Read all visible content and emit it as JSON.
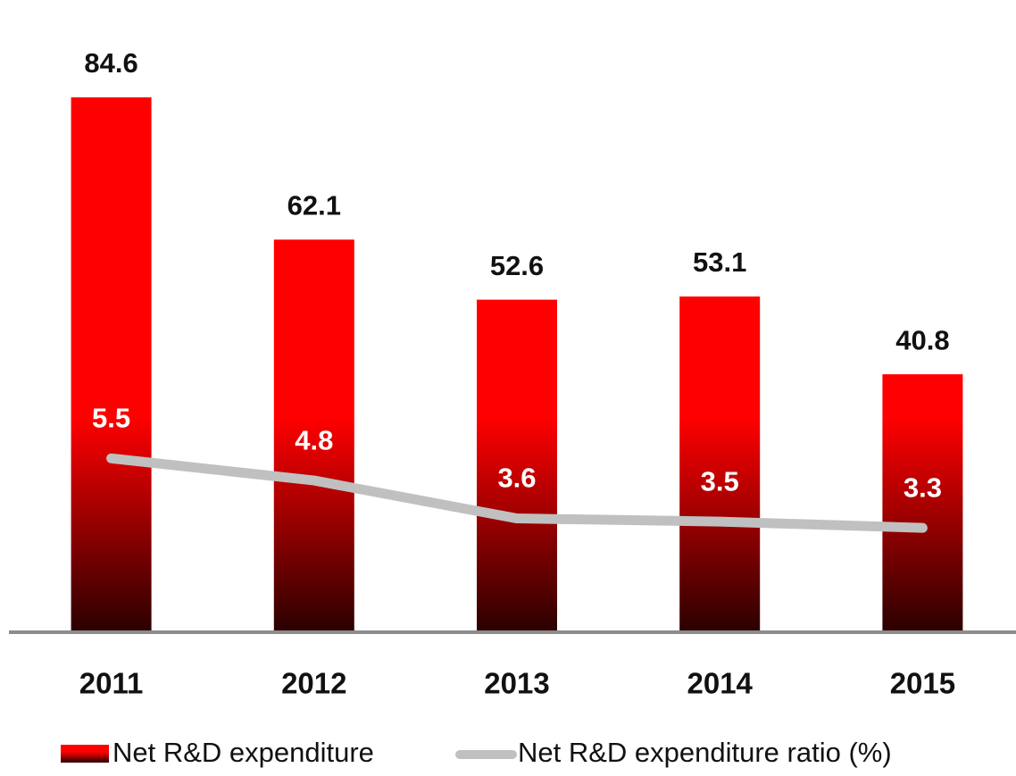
{
  "chart_data": {
    "type": "bar",
    "categories": [
      "2011",
      "2012",
      "2013",
      "2014",
      "2015"
    ],
    "series": [
      {
        "name": "Net R&D expenditure",
        "color": "#ff0000",
        "values": [
          84.6,
          62.1,
          52.6,
          53.1,
          40.8
        ]
      },
      {
        "name": "Net R&D expenditure ratio (%)",
        "color": "#c0c0c0",
        "axis": "y2",
        "type": "line",
        "values": [
          5.5,
          4.8,
          3.6,
          3.5,
          3.3
        ]
      }
    ],
    "ylim": [
      0,
      100
    ],
    "y2lim": [
      0,
      20
    ]
  }
}
